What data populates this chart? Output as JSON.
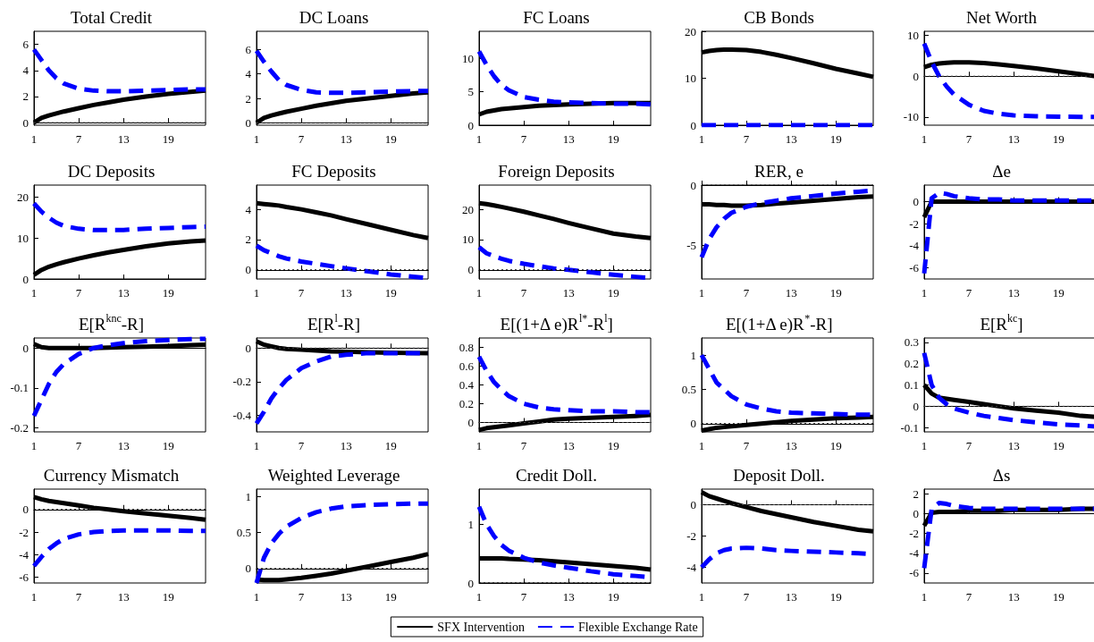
{
  "chart_data": [
    {
      "type": "line",
      "title": "Total Credit",
      "x": [
        1,
        2,
        3,
        4,
        5,
        7,
        9,
        11,
        13,
        16,
        19,
        22,
        24
      ],
      "xlim": [
        1,
        24
      ],
      "xticks": [
        1,
        7,
        13,
        19
      ],
      "ylim": [
        -0.2,
        7
      ],
      "yticks": [
        0,
        2,
        4,
        6
      ],
      "legend": "bottom",
      "ref_lines": [
        {
          "axis": "y",
          "value": 0,
          "line_style": "dotted",
          "color": "#404040"
        }
      ],
      "series": [
        {
          "name": "SFX Intervention",
          "color": "#000000",
          "line_style": "solid",
          "values": [
            0,
            0.35,
            0.55,
            0.7,
            0.85,
            1.1,
            1.35,
            1.55,
            1.75,
            2.0,
            2.2,
            2.35,
            2.45
          ]
        },
        {
          "name": "Flexible Exchange Rate",
          "color": "#0000ff",
          "line_style": "dashed",
          "values": [
            5.6,
            4.8,
            4.0,
            3.4,
            3.0,
            2.6,
            2.45,
            2.4,
            2.4,
            2.45,
            2.5,
            2.55,
            2.55
          ]
        }
      ]
    },
    {
      "type": "line",
      "title": "DC Loans",
      "x": [
        1,
        2,
        3,
        4,
        5,
        7,
        9,
        11,
        13,
        16,
        19,
        22,
        24
      ],
      "xlim": [
        1,
        24
      ],
      "xticks": [
        1,
        7,
        13,
        19
      ],
      "ylim": [
        -0.2,
        7.5
      ],
      "yticks": [
        0,
        2,
        4,
        6
      ],
      "ref_lines": [
        {
          "axis": "y",
          "value": 0,
          "line_style": "dotted",
          "color": "#404040"
        }
      ],
      "series": [
        {
          "color": "#000000",
          "line_style": "solid",
          "values": [
            0,
            0.4,
            0.6,
            0.75,
            0.9,
            1.15,
            1.4,
            1.6,
            1.8,
            2.0,
            2.2,
            2.4,
            2.5
          ]
        },
        {
          "color": "#0000ff",
          "line_style": "dashed",
          "values": [
            5.9,
            5.0,
            4.2,
            3.5,
            3.1,
            2.7,
            2.5,
            2.45,
            2.45,
            2.5,
            2.55,
            2.6,
            2.6
          ]
        }
      ]
    },
    {
      "type": "line",
      "title": "FC Loans",
      "x": [
        1,
        2,
        3,
        4,
        5,
        7,
        9,
        11,
        13,
        16,
        19,
        22,
        24
      ],
      "xlim": [
        1,
        24
      ],
      "xticks": [
        1,
        7,
        13,
        19
      ],
      "ylim": [
        0,
        14
      ],
      "yticks": [
        0,
        5,
        10
      ],
      "series": [
        {
          "color": "#000000",
          "line_style": "solid",
          "values": [
            1.6,
            2.0,
            2.2,
            2.4,
            2.5,
            2.7,
            2.9,
            3.0,
            3.1,
            3.2,
            3.3,
            3.3,
            3.3
          ]
        },
        {
          "color": "#0000ff",
          "line_style": "dashed",
          "values": [
            11,
            9,
            7.3,
            6,
            5.2,
            4.2,
            3.8,
            3.5,
            3.4,
            3.3,
            3.2,
            3.2,
            3.1
          ]
        }
      ]
    },
    {
      "type": "line",
      "title": "CB Bonds",
      "x": [
        1,
        2,
        3,
        4,
        5,
        7,
        9,
        11,
        13,
        16,
        19,
        22,
        24
      ],
      "xlim": [
        1,
        24
      ],
      "xticks": [
        1,
        7,
        13,
        19
      ],
      "ylim": [
        0,
        20
      ],
      "yticks": [
        0,
        10,
        20
      ],
      "series": [
        {
          "color": "#000000",
          "line_style": "solid",
          "values": [
            15.5,
            15.8,
            16,
            16.1,
            16.1,
            16,
            15.6,
            15,
            14.3,
            13.2,
            12,
            11,
            10.3
          ]
        },
        {
          "color": "#0000ff",
          "line_style": "dashed",
          "values": [
            0,
            0,
            0,
            0,
            0,
            0,
            0,
            0,
            0,
            0,
            0,
            0,
            0
          ]
        }
      ]
    },
    {
      "type": "line",
      "title": "Net Worth",
      "x": [
        1,
        2,
        3,
        4,
        5,
        7,
        9,
        11,
        13,
        16,
        19,
        22,
        24
      ],
      "xlim": [
        1,
        24
      ],
      "xticks": [
        1,
        7,
        13,
        19
      ],
      "ylim": [
        -12,
        11
      ],
      "yticks": [
        -10,
        0,
        10
      ],
      "ref_lines": [
        {
          "axis": "y",
          "value": 0,
          "line_style": "dotted",
          "color": "#404040"
        }
      ],
      "series": [
        {
          "color": "#000000",
          "line_style": "solid",
          "values": [
            2.2,
            2.8,
            3.1,
            3.3,
            3.4,
            3.4,
            3.2,
            2.9,
            2.5,
            1.9,
            1.2,
            0.5,
            0
          ]
        },
        {
          "color": "#0000ff",
          "line_style": "dashed",
          "values": [
            8,
            3.5,
            0,
            -2.5,
            -4.5,
            -7,
            -8.5,
            -9.2,
            -9.6,
            -9.8,
            -9.9,
            -10,
            -10
          ]
        }
      ]
    },
    {
      "type": "line",
      "title": "DC Deposits",
      "x": [
        1,
        2,
        3,
        4,
        5,
        7,
        9,
        11,
        13,
        16,
        19,
        22,
        24
      ],
      "xlim": [
        1,
        24
      ],
      "xticks": [
        1,
        7,
        13,
        19
      ],
      "ylim": [
        0,
        23
      ],
      "yticks": [
        0,
        10,
        20
      ],
      "series": [
        {
          "color": "#000000",
          "line_style": "solid",
          "values": [
            1,
            2.2,
            3,
            3.6,
            4.1,
            5,
            5.8,
            6.5,
            7.1,
            8,
            8.7,
            9.2,
            9.4
          ]
        },
        {
          "color": "#0000ff",
          "line_style": "dashed",
          "values": [
            18.5,
            16.5,
            15,
            13.8,
            13,
            12.3,
            12,
            12,
            12,
            12.3,
            12.5,
            12.7,
            12.8
          ]
        }
      ]
    },
    {
      "type": "line",
      "title": "FC Deposits",
      "x": [
        1,
        2,
        3,
        4,
        5,
        7,
        9,
        11,
        13,
        16,
        19,
        22,
        24
      ],
      "xlim": [
        1,
        24
      ],
      "xticks": [
        1,
        7,
        13,
        19
      ],
      "ylim": [
        -0.6,
        5.6
      ],
      "yticks": [
        0,
        2,
        4
      ],
      "ref_lines": [
        {
          "axis": "y",
          "value": 0,
          "line_style": "dotted",
          "color": "#000000"
        }
      ],
      "series": [
        {
          "color": "#000000",
          "line_style": "solid",
          "values": [
            4.4,
            4.35,
            4.3,
            4.25,
            4.15,
            4.0,
            3.8,
            3.6,
            3.35,
            3.0,
            2.65,
            2.3,
            2.1
          ]
        },
        {
          "color": "#0000ff",
          "line_style": "dashed",
          "values": [
            1.6,
            1.3,
            1.1,
            0.9,
            0.75,
            0.55,
            0.4,
            0.25,
            0.1,
            -0.1,
            -0.3,
            -0.45,
            -0.55
          ]
        }
      ]
    },
    {
      "type": "line",
      "title": "Foreign Deposits",
      "x": [
        1,
        2,
        3,
        4,
        5,
        7,
        9,
        11,
        13,
        16,
        19,
        22,
        24
      ],
      "xlim": [
        1,
        24
      ],
      "xticks": [
        1,
        7,
        13,
        19
      ],
      "ylim": [
        -3,
        28
      ],
      "yticks": [
        0,
        10,
        20
      ],
      "ref_lines": [
        {
          "axis": "y",
          "value": 0,
          "line_style": "dotted",
          "color": "#000000"
        }
      ],
      "series": [
        {
          "color": "#000000",
          "line_style": "solid",
          "values": [
            22,
            21.7,
            21.3,
            20.8,
            20.3,
            19.2,
            18,
            16.8,
            15.5,
            13.7,
            12,
            11,
            10.5
          ]
        },
        {
          "color": "#0000ff",
          "line_style": "dashed",
          "values": [
            7.5,
            5.5,
            4.5,
            3.7,
            3,
            2,
            1.2,
            0.5,
            0,
            -0.8,
            -1.6,
            -2.3,
            -2.7
          ]
        }
      ]
    },
    {
      "type": "line",
      "title": "RER, e",
      "x": [
        1,
        2,
        3,
        4,
        5,
        7,
        9,
        11,
        13,
        16,
        19,
        22,
        24
      ],
      "xlim": [
        1,
        24
      ],
      "xticks": [
        1,
        7,
        13,
        19
      ],
      "ylim": [
        -7.8,
        0
      ],
      "yticks": [
        -5,
        0
      ],
      "ref_lines": [
        {
          "axis": "y",
          "value": 0,
          "line_style": "dotted",
          "color": "#000000"
        }
      ],
      "series": [
        {
          "color": "#000000",
          "line_style": "solid",
          "values": [
            -1.6,
            -1.6,
            -1.65,
            -1.65,
            -1.7,
            -1.7,
            -1.65,
            -1.55,
            -1.45,
            -1.3,
            -1.15,
            -1.0,
            -0.95
          ]
        },
        {
          "color": "#0000ff",
          "line_style": "dashed",
          "values": [
            -6,
            -4.5,
            -3.5,
            -2.8,
            -2.3,
            -1.8,
            -1.5,
            -1.3,
            -1.1,
            -0.9,
            -0.7,
            -0.55,
            -0.45
          ]
        }
      ]
    },
    {
      "type": "line",
      "title": "Δe",
      "x": [
        1,
        2,
        3,
        4,
        5,
        7,
        9,
        11,
        13,
        16,
        19,
        22,
        24
      ],
      "xlim": [
        1,
        24
      ],
      "xticks": [
        1,
        7,
        13,
        19
      ],
      "ylim": [
        -7,
        1.5
      ],
      "yticks": [
        -6,
        -4,
        -2,
        0
      ],
      "series": [
        {
          "color": "#000000",
          "line_style": "solid",
          "values": [
            -1.4,
            0,
            0,
            0,
            0,
            0,
            0,
            0,
            0,
            0,
            0,
            0,
            0
          ]
        },
        {
          "color": "#0000ff",
          "line_style": "dashed",
          "values": [
            -6.5,
            0.3,
            0.8,
            0.7,
            0.5,
            0.3,
            0.2,
            0.2,
            0.1,
            0.1,
            0.1,
            0.1,
            0.1
          ]
        }
      ]
    },
    {
      "type": "line",
      "title": "E[R$^{knc}$-R]",
      "x": [
        1,
        2,
        3,
        4,
        5,
        7,
        9,
        11,
        13,
        16,
        19,
        22,
        24
      ],
      "xlim": [
        1,
        24
      ],
      "xticks": [
        1,
        7,
        13,
        19
      ],
      "ylim": [
        -0.21,
        0.025
      ],
      "yticks": [
        -0.2,
        -0.1,
        0
      ],
      "series": [
        {
          "color": "#000000",
          "line_style": "solid",
          "values": [
            0.01,
            0.002,
            0,
            0,
            0,
            0,
            0,
            0.001,
            0.002,
            0.003,
            0.005,
            0.007,
            0.008
          ]
        },
        {
          "color": "#0000ff",
          "line_style": "dashed",
          "values": [
            -0.17,
            -0.13,
            -0.09,
            -0.06,
            -0.04,
            -0.015,
            0,
            0.007,
            0.012,
            0.017,
            0.02,
            0.022,
            0.023
          ]
        }
      ]
    },
    {
      "type": "line",
      "title": "E[R$^{l}$-R]",
      "x": [
        1,
        2,
        3,
        4,
        5,
        7,
        9,
        11,
        13,
        16,
        19,
        22,
        24
      ],
      "xlim": [
        1,
        24
      ],
      "xticks": [
        1,
        7,
        13,
        19
      ],
      "ylim": [
        -0.5,
        0.06
      ],
      "yticks": [
        -0.4,
        -0.2,
        0
      ],
      "ref_lines": [
        {
          "axis": "y",
          "value": 0,
          "line_style": "dotted",
          "color": "#404040"
        }
      ],
      "series": [
        {
          "color": "#000000",
          "line_style": "solid",
          "values": [
            0.04,
            0.02,
            0.01,
            0,
            -0.005,
            -0.01,
            -0.015,
            -0.02,
            -0.022,
            -0.025,
            -0.028,
            -0.03,
            -0.03
          ]
        },
        {
          "color": "#0000ff",
          "line_style": "dashed",
          "values": [
            -0.45,
            -0.38,
            -0.3,
            -0.24,
            -0.19,
            -0.12,
            -0.08,
            -0.05,
            -0.04,
            -0.03,
            -0.03,
            -0.03,
            -0.03
          ]
        }
      ]
    },
    {
      "type": "line",
      "title": "E[(1+Δ e)R$^{l*}$-R$^{l}$]",
      "x": [
        1,
        2,
        3,
        4,
        5,
        7,
        9,
        11,
        13,
        16,
        19,
        22,
        24
      ],
      "xlim": [
        1,
        24
      ],
      "xticks": [
        1,
        7,
        13,
        19
      ],
      "ylim": [
        -0.1,
        0.9
      ],
      "yticks": [
        0,
        0.2,
        0.4,
        0.6,
        0.8
      ],
      "ref_lines": [
        {
          "axis": "y",
          "value": 0,
          "line_style": "dotted",
          "color": "#404040"
        }
      ],
      "series": [
        {
          "color": "#000000",
          "line_style": "solid",
          "values": [
            -0.08,
            -0.06,
            -0.05,
            -0.04,
            -0.03,
            -0.01,
            0.01,
            0.03,
            0.04,
            0.05,
            0.06,
            0.07,
            0.08
          ]
        },
        {
          "color": "#0000ff",
          "line_style": "dashed",
          "values": [
            0.7,
            0.55,
            0.43,
            0.35,
            0.28,
            0.2,
            0.16,
            0.14,
            0.13,
            0.12,
            0.12,
            0.11,
            0.11
          ]
        }
      ]
    },
    {
      "type": "line",
      "title": "E[(1+Δ e)R$^{*}$-R]",
      "x": [
        1,
        2,
        3,
        4,
        5,
        7,
        9,
        11,
        13,
        16,
        19,
        22,
        24
      ],
      "xlim": [
        1,
        24
      ],
      "xticks": [
        1,
        7,
        13,
        19
      ],
      "ylim": [
        -0.12,
        1.25
      ],
      "yticks": [
        0,
        0.5,
        1
      ],
      "ref_lines": [
        {
          "axis": "y",
          "value": 0,
          "line_style": "dotted",
          "color": "#000000"
        }
      ],
      "series": [
        {
          "color": "#000000",
          "line_style": "solid",
          "values": [
            -0.1,
            -0.08,
            -0.06,
            -0.05,
            -0.04,
            -0.02,
            0,
            0.02,
            0.04,
            0.06,
            0.08,
            0.09,
            0.1
          ]
        },
        {
          "color": "#0000ff",
          "line_style": "dashed",
          "values": [
            1.0,
            0.8,
            0.6,
            0.5,
            0.4,
            0.28,
            0.22,
            0.18,
            0.16,
            0.15,
            0.14,
            0.13,
            0.13
          ]
        }
      ]
    },
    {
      "type": "line",
      "title": "E[R$^{kc}$]",
      "x": [
        1,
        2,
        3,
        4,
        5,
        7,
        9,
        11,
        13,
        16,
        19,
        22,
        24
      ],
      "xlim": [
        1,
        24
      ],
      "xticks": [
        1,
        7,
        13,
        19
      ],
      "ylim": [
        -0.12,
        0.32
      ],
      "yticks": [
        -0.1,
        0,
        0.1,
        0.2,
        0.3
      ],
      "ref_lines": [
        {
          "axis": "y",
          "value": 0,
          "line_style": "dotted",
          "color": "#404040"
        }
      ],
      "series": [
        {
          "color": "#000000",
          "line_style": "solid",
          "values": [
            0.1,
            0.06,
            0.04,
            0.035,
            0.03,
            0.02,
            0.01,
            0,
            -0.01,
            -0.02,
            -0.03,
            -0.045,
            -0.05
          ]
        },
        {
          "color": "#0000ff",
          "line_style": "dashed",
          "values": [
            0.25,
            0.1,
            0.04,
            0.01,
            -0.01,
            -0.03,
            -0.045,
            -0.055,
            -0.065,
            -0.075,
            -0.085,
            -0.09,
            -0.095
          ]
        }
      ]
    },
    {
      "type": "line",
      "title": "Currency Mismatch",
      "x": [
        1,
        2,
        3,
        4,
        5,
        7,
        9,
        11,
        13,
        16,
        19,
        22,
        24
      ],
      "xlim": [
        1,
        24
      ],
      "xticks": [
        1,
        7,
        13,
        19
      ],
      "ylim": [
        -6.5,
        1.8
      ],
      "yticks": [
        -6,
        -4,
        -2,
        0
      ],
      "ref_lines": [
        {
          "axis": "y",
          "value": 0,
          "line_style": "dotted",
          "color": "#000000"
        }
      ],
      "series": [
        {
          "color": "#000000",
          "line_style": "solid",
          "values": [
            1.1,
            0.9,
            0.75,
            0.65,
            0.55,
            0.35,
            0.15,
            0,
            -0.15,
            -0.35,
            -0.55,
            -0.75,
            -0.9
          ]
        },
        {
          "color": "#0000ff",
          "line_style": "dashed",
          "values": [
            -5,
            -4.2,
            -3.5,
            -3,
            -2.6,
            -2.2,
            -2,
            -1.9,
            -1.85,
            -1.85,
            -1.85,
            -1.9,
            -1.9
          ]
        }
      ]
    },
    {
      "type": "line",
      "title": "Weighted Leverage",
      "x": [
        1,
        2,
        3,
        4,
        5,
        7,
        9,
        11,
        13,
        16,
        19,
        22,
        24
      ],
      "xlim": [
        1,
        24
      ],
      "xticks": [
        1,
        7,
        13,
        19
      ],
      "ylim": [
        -0.2,
        1.1
      ],
      "yticks": [
        0,
        0.5,
        1
      ],
      "ref_lines": [
        {
          "axis": "y",
          "value": 0,
          "line_style": "dotted",
          "color": "#000000"
        }
      ],
      "series": [
        {
          "color": "#000000",
          "line_style": "solid",
          "values": [
            -0.15,
            -0.16,
            -0.16,
            -0.16,
            -0.15,
            -0.13,
            -0.1,
            -0.07,
            -0.03,
            0.03,
            0.09,
            0.15,
            0.2
          ]
        },
        {
          "color": "#0000ff",
          "line_style": "dashed",
          "values": [
            -0.2,
            0.15,
            0.35,
            0.48,
            0.58,
            0.7,
            0.78,
            0.83,
            0.86,
            0.88,
            0.89,
            0.9,
            0.9
          ]
        }
      ]
    },
    {
      "type": "line",
      "title": "Credit Doll.",
      "x": [
        1,
        2,
        3,
        4,
        5,
        7,
        9,
        11,
        13,
        16,
        19,
        22,
        24
      ],
      "xlim": [
        1,
        24
      ],
      "xticks": [
        1,
        7,
        13,
        19
      ],
      "ylim": [
        0,
        1.6
      ],
      "yticks": [
        0,
        1
      ],
      "ref_lines": [
        {
          "axis": "y",
          "value": 0,
          "line_style": "dotted",
          "color": "#000000"
        }
      ],
      "series": [
        {
          "color": "#000000",
          "line_style": "solid",
          "values": [
            0.42,
            0.42,
            0.42,
            0.42,
            0.41,
            0.4,
            0.39,
            0.37,
            0.35,
            0.32,
            0.29,
            0.26,
            0.23
          ]
        },
        {
          "color": "#0000ff",
          "line_style": "dashed",
          "values": [
            1.3,
            1.0,
            0.8,
            0.65,
            0.55,
            0.43,
            0.35,
            0.3,
            0.26,
            0.2,
            0.15,
            0.12,
            0.1
          ]
        }
      ]
    },
    {
      "type": "line",
      "title": "Deposit Doll.",
      "x": [
        1,
        2,
        3,
        4,
        5,
        7,
        9,
        11,
        13,
        16,
        19,
        22,
        24
      ],
      "xlim": [
        1,
        24
      ],
      "xticks": [
        1,
        7,
        13,
        19
      ],
      "ylim": [
        -5,
        1
      ],
      "yticks": [
        -4,
        -2,
        0
      ],
      "ref_lines": [
        {
          "axis": "y",
          "value": 0,
          "line_style": "dotted",
          "color": "#404040"
        }
      ],
      "series": [
        {
          "color": "#000000",
          "line_style": "solid",
          "values": [
            0.8,
            0.55,
            0.4,
            0.25,
            0.1,
            -0.15,
            -0.4,
            -0.6,
            -0.8,
            -1.1,
            -1.35,
            -1.6,
            -1.7
          ]
        },
        {
          "color": "#0000ff",
          "line_style": "dashed",
          "values": [
            -4,
            -3.5,
            -3.1,
            -2.9,
            -2.8,
            -2.75,
            -2.8,
            -2.9,
            -2.95,
            -3.0,
            -3.05,
            -3.1,
            -3.15
          ]
        }
      ]
    },
    {
      "type": "line",
      "title": "Δs",
      "x": [
        1,
        2,
        3,
        4,
        5,
        7,
        9,
        11,
        13,
        16,
        19,
        22,
        24
      ],
      "xlim": [
        1,
        24
      ],
      "xticks": [
        1,
        7,
        13,
        19
      ],
      "ylim": [
        -7,
        2.5
      ],
      "yticks": [
        -6,
        -4,
        -2,
        0,
        2
      ],
      "series": [
        {
          "color": "#000000",
          "line_style": "solid",
          "values": [
            -1.2,
            0.1,
            0.2,
            0.2,
            0.2,
            0.3,
            0.3,
            0.3,
            0.4,
            0.4,
            0.4,
            0.5,
            0.5
          ]
        },
        {
          "color": "#0000ff",
          "line_style": "dashed",
          "values": [
            -5.5,
            0.5,
            1.1,
            1.0,
            0.8,
            0.6,
            0.5,
            0.5,
            0.5,
            0.5,
            0.5,
            0.5,
            0.5
          ]
        }
      ]
    }
  ]
}
